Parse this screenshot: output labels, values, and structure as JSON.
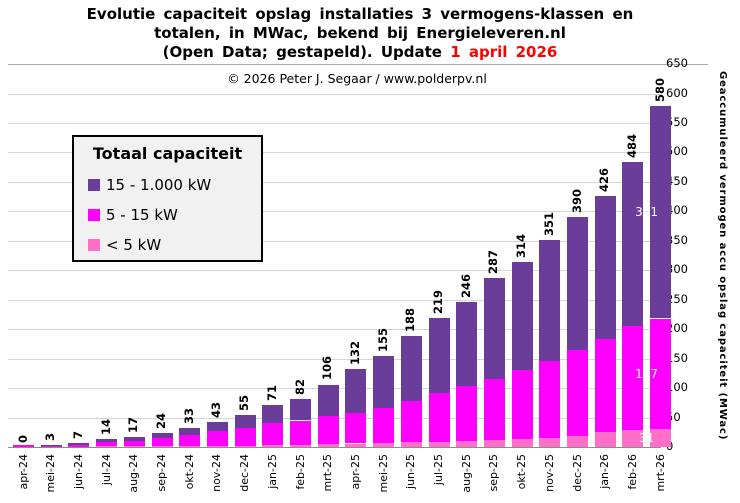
{
  "title": {
    "line1": "Evolutie capaciteit opslag installaties 3 vermogens-klassen en",
    "line2": "totalen, in MWac, bekend bij Energieleveren.nl",
    "line3_prefix": "(Open Data; gestapeld). Update ",
    "line3_highlight": "1 april 2026"
  },
  "copyright": "© 2026 Peter J. Segaar / www.polderpv.nl",
  "legend": {
    "title": "Totaal capaciteit",
    "items": [
      {
        "label": "15 - 1.000 kW",
        "color": "#6A3D9B"
      },
      {
        "label": "5 - 15 kW",
        "color": "#FF00FF"
      },
      {
        "label": "< 5 kW",
        "color": "#FF6EC7"
      }
    ]
  },
  "chart_data": {
    "type": "bar",
    "stacked": true,
    "title": "Evolutie capaciteit opslag installaties 3 vermogens-klassen en totalen, in MWac, bekend bij Energieleveren.nl (Open Data; gestapeld). Update 1 april 2026",
    "ylabel": "Geaccumuleerd vermogen accu opslag capaciteit (MWac)",
    "y_axis": {
      "min": 0,
      "max": 650,
      "step": 50,
      "side": "right"
    },
    "grid": true,
    "legend_position": "upper-left",
    "categories": [
      "apr-24",
      "mei-24",
      "jun-24",
      "jul-24",
      "aug-24",
      "sep-24",
      "okt-24",
      "nov-24",
      "dec-24",
      "jan-25",
      "feb-25",
      "mrt-25",
      "apr-25",
      "mei-25",
      "jun-25",
      "jul-25",
      "aug-25",
      "sep-25",
      "okt-25",
      "nov-25",
      "dec-25",
      "jan-26",
      "feb-26",
      "mrt-26"
    ],
    "totals": [
      0,
      3,
      7,
      14,
      17,
      24,
      33,
      43,
      55,
      71,
      82,
      106,
      132,
      155,
      188,
      219,
      246,
      287,
      314,
      351,
      390,
      426,
      484,
      580
    ],
    "series": [
      {
        "name": "< 5 kW",
        "color": "#FF6EC7",
        "values": [
          0,
          0,
          0,
          1,
          1,
          1,
          1,
          2,
          2,
          3,
          4,
          5,
          6,
          7,
          8,
          9,
          10,
          12,
          13,
          15,
          18,
          26,
          29,
          31
        ]
      },
      {
        "name": "5 - 15 kW",
        "color": "#FF00FF",
        "values": [
          0,
          2,
          4,
          8,
          10,
          14,
          19,
          25,
          31,
          37,
          41,
          47,
          52,
          59,
          70,
          83,
          93,
          103,
          118,
          131,
          147,
          157,
          177,
          187
        ]
      },
      {
        "name": "15 - 1.000 kW",
        "color": "#6A3D9B",
        "values": [
          0,
          1,
          3,
          5,
          6,
          9,
          13,
          16,
          22,
          31,
          37,
          54,
          74,
          89,
          110,
          127,
          143,
          172,
          183,
          205,
          225,
          243,
          278,
          361
        ]
      }
    ],
    "final_bar_segment_labels": [
      {
        "series": "15 - 1.000 kW",
        "value": 361
      },
      {
        "series": "5 - 15 kW",
        "value": 187
      },
      {
        "series": "< 5 kW",
        "value": 31
      }
    ]
  },
  "colors": {
    "title_highlight": "#FF0000",
    "grid": "#D6D6D6",
    "baseline": "#8C8C8C",
    "legend_bg": "#F1F1F1",
    "segment_label_text": "#FFFFFF",
    "background": "#FFFFFF"
  }
}
